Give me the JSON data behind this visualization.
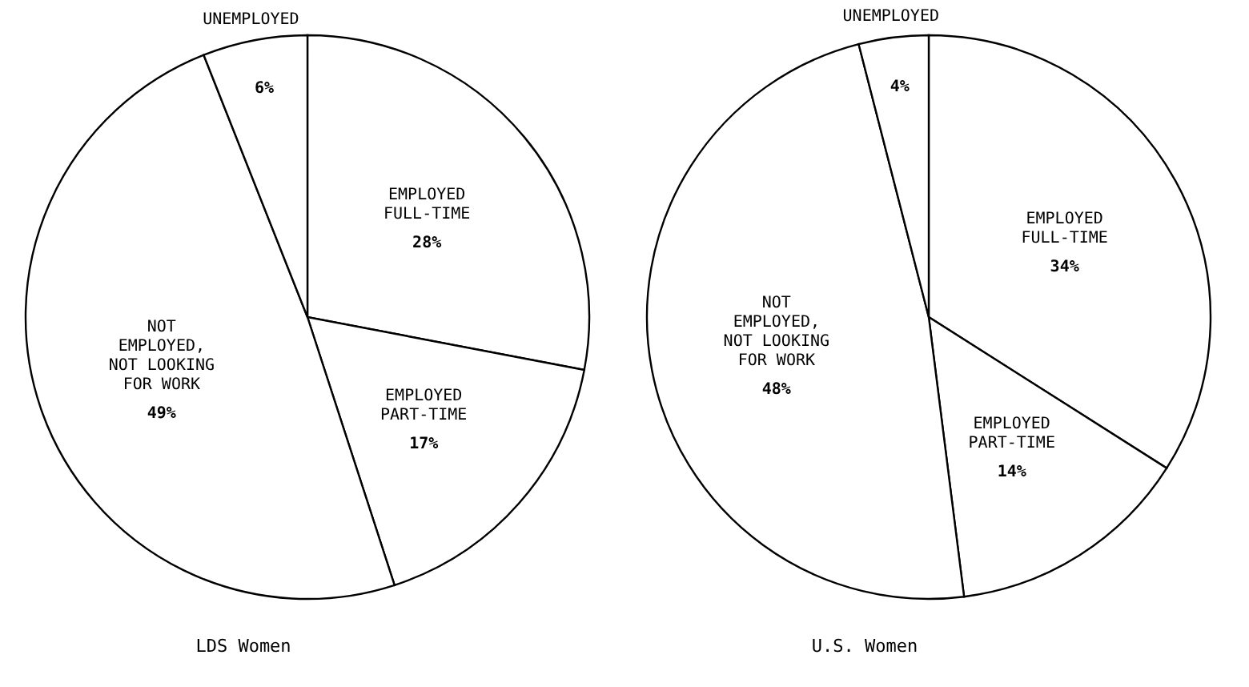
{
  "chart_data": [
    {
      "type": "pie",
      "title": "LDS Women",
      "categories": [
        "EMPLOYED\nFULL-TIME",
        "EMPLOYED\nPART-TIME",
        "NOT\nEMPLOYED,\nNOT LOOKING\nFOR WORK",
        "UNEMPLOYED"
      ],
      "values": [
        28,
        17,
        49,
        6
      ],
      "colors": [
        "#ffffff",
        "#ffffff",
        "#ffffff",
        "#ffffff"
      ],
      "value_labels": [
        "28%",
        "17%",
        "49%",
        "6%"
      ]
    },
    {
      "type": "pie",
      "title": "U.S. Women",
      "categories": [
        "EMPLOYED\nFULL-TIME",
        "EMPLOYED\nPART-TIME",
        "NOT\nEMPLOYED,\nNOT LOOKING\nFOR WORK",
        "UNEMPLOYED"
      ],
      "values": [
        34,
        14,
        48,
        4
      ],
      "colors": [
        "#ffffff",
        "#ffffff",
        "#ffffff",
        "#ffffff"
      ],
      "value_labels": [
        "34%",
        "14%",
        "48%",
        "4%"
      ]
    }
  ]
}
